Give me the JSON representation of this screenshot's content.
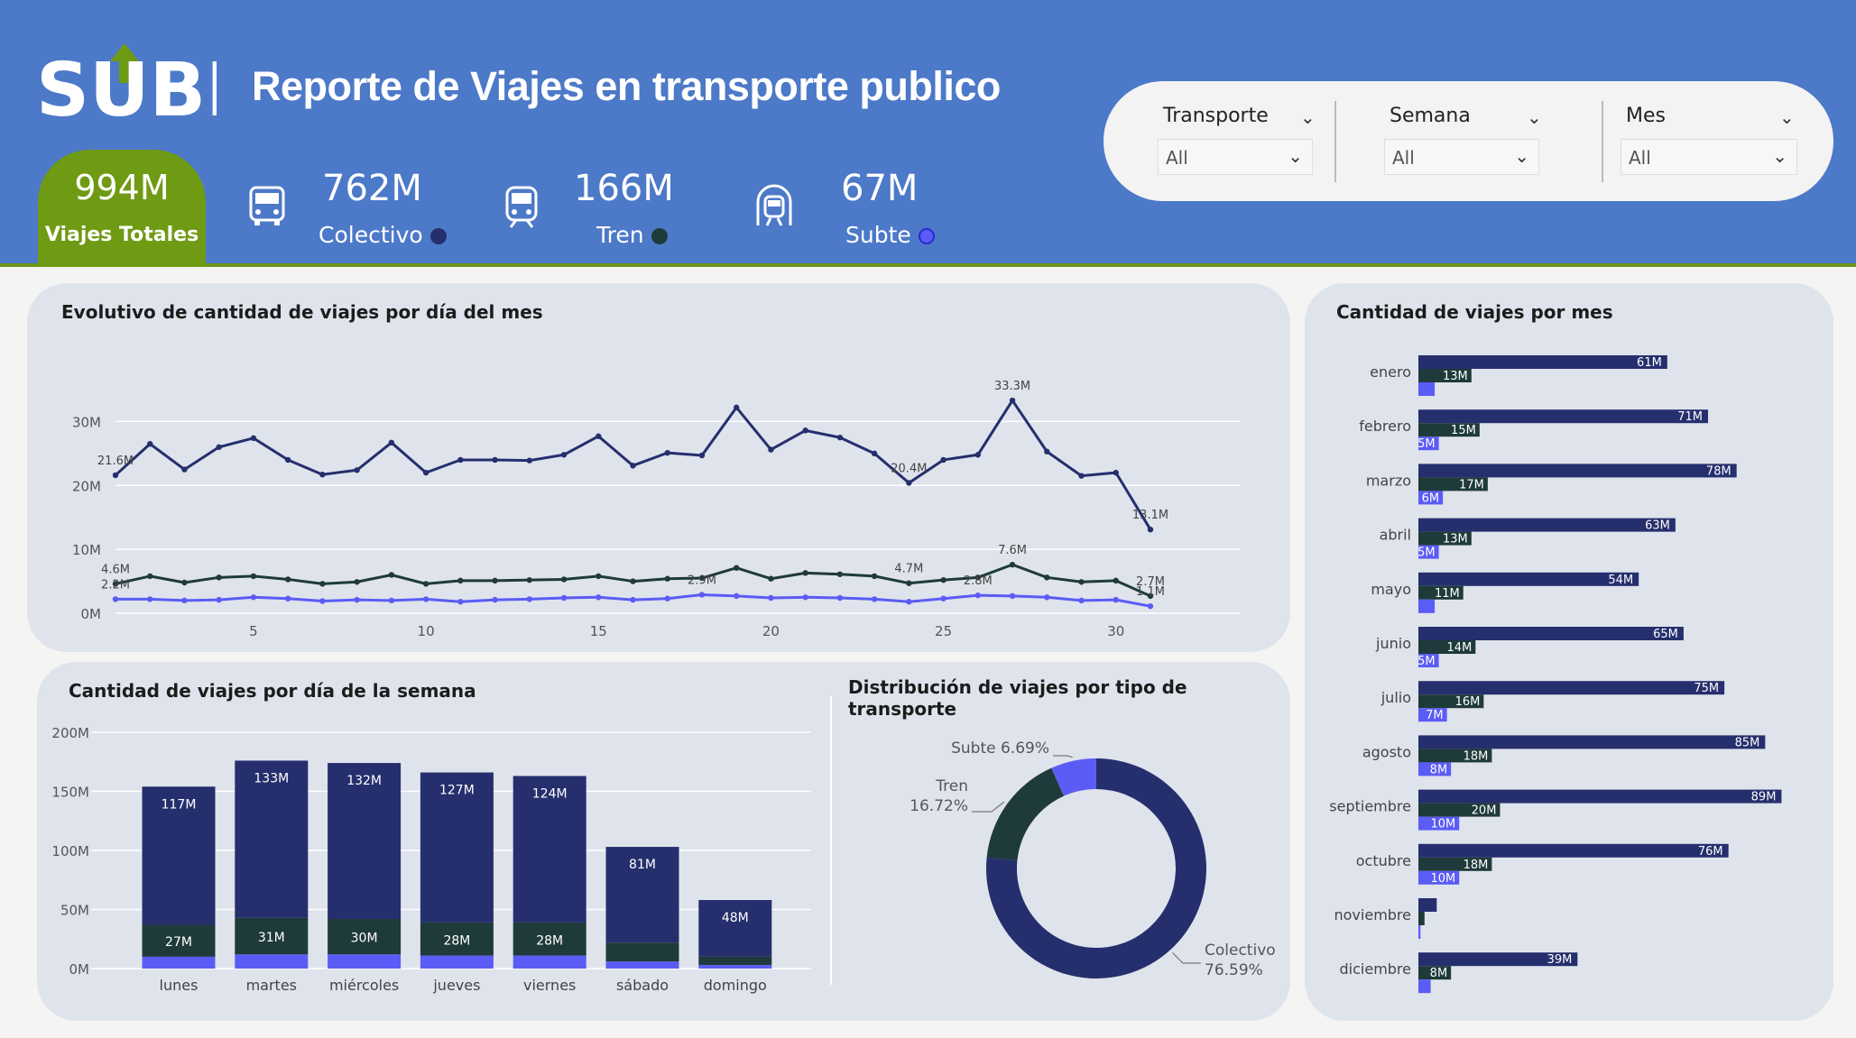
{
  "header": {
    "logo_text": "SUBE",
    "title": "Reporte de Viajes en transporte publico"
  },
  "kpis": {
    "total": {
      "value": "994M",
      "label": "Viajes Totales"
    },
    "colectivo": {
      "value": "762M",
      "label": "Colectivo",
      "icon": "bus-icon",
      "color": "#252f6d"
    },
    "tren": {
      "value": "166M",
      "label": "Tren",
      "icon": "train-icon",
      "color": "#1f3a3a"
    },
    "subte": {
      "value": "67M",
      "label": "Subte",
      "icon": "subway-icon",
      "color": "#5b5cf5"
    }
  },
  "filters": [
    {
      "label": "Transporte",
      "value": "All"
    },
    {
      "label": "Semana",
      "value": "All"
    },
    {
      "label": "Mes",
      "value": "All"
    }
  ],
  "colors": {
    "header_bg": "#4c79c8",
    "accent_green": "#6f9a14",
    "colectivo": "#252f6d",
    "tren": "#1f3a3a",
    "subte": "#5b5cf5",
    "card_bg": "#dfe3ec"
  },
  "chart_data": [
    {
      "type": "line",
      "title": "Evolutivo de cantidad de viajes por día del mes",
      "x": [
        1,
        2,
        3,
        4,
        5,
        6,
        7,
        8,
        9,
        10,
        11,
        12,
        13,
        14,
        15,
        16,
        17,
        18,
        19,
        20,
        21,
        22,
        23,
        24,
        25,
        26,
        27,
        28,
        29,
        30,
        31
      ],
      "x_ticks": [
        "5",
        "10",
        "15",
        "20",
        "25",
        "30"
      ],
      "y_ticks": [
        "0M",
        "10M",
        "20M",
        "30M"
      ],
      "ylim": [
        0,
        35
      ],
      "grid": true,
      "series": [
        {
          "key": "colectivo",
          "color": "#252f6d",
          "values": [
            21.6,
            26.5,
            22.5,
            26.0,
            27.4,
            24.0,
            21.7,
            22.4,
            26.7,
            22.0,
            24.0,
            24.0,
            23.9,
            24.8,
            27.7,
            23.1,
            25.1,
            24.7,
            32.2,
            25.6,
            28.6,
            27.5,
            25.0,
            20.4,
            24.0,
            24.8,
            33.3,
            25.3,
            21.5,
            22.0,
            13.1
          ]
        },
        {
          "key": "tren",
          "color": "#1f3a3a",
          "values": [
            4.6,
            5.8,
            4.8,
            5.6,
            5.8,
            5.3,
            4.6,
            4.9,
            6.0,
            4.6,
            5.1,
            5.1,
            5.2,
            5.3,
            5.8,
            5.0,
            5.4,
            5.5,
            7.1,
            5.4,
            6.3,
            6.1,
            5.8,
            4.7,
            5.2,
            5.6,
            7.6,
            5.6,
            4.9,
            5.1,
            2.7
          ]
        },
        {
          "key": "subte",
          "color": "#5b5cf5",
          "values": [
            2.2,
            2.2,
            2.0,
            2.1,
            2.5,
            2.3,
            1.9,
            2.1,
            2.0,
            2.2,
            1.8,
            2.1,
            2.2,
            2.4,
            2.5,
            2.1,
            2.3,
            2.9,
            2.7,
            2.4,
            2.5,
            2.4,
            2.2,
            1.8,
            2.3,
            2.8,
            2.7,
            2.5,
            2.0,
            2.1,
            1.1
          ]
        }
      ],
      "data_labels": [
        {
          "series": 0,
          "x": 1,
          "text": "21.6M"
        },
        {
          "series": 0,
          "x": 24,
          "text": "20.4M"
        },
        {
          "series": 0,
          "x": 27,
          "text": "33.3M"
        },
        {
          "series": 0,
          "x": 31,
          "text": "13.1M"
        },
        {
          "series": 1,
          "x": 1,
          "text": "4.6M"
        },
        {
          "series": 1,
          "x": 24,
          "text": "4.7M"
        },
        {
          "series": 1,
          "x": 27,
          "text": "7.6M"
        },
        {
          "series": 1,
          "x": 31,
          "text": "2.7M"
        },
        {
          "series": 2,
          "x": 1,
          "text": "2.2M"
        },
        {
          "series": 2,
          "x": 18,
          "text": "2.9M"
        },
        {
          "series": 2,
          "x": 26,
          "text": "2.8M"
        },
        {
          "series": 2,
          "x": 31,
          "text": "1.1M"
        }
      ]
    },
    {
      "type": "bar",
      "title": "Cantidad de viajes por día de la semana",
      "categories": [
        "lunes",
        "martes",
        "miércoles",
        "jueves",
        "viernes",
        "sábado",
        "domingo"
      ],
      "y_ticks": [
        "0M",
        "50M",
        "100M",
        "150M",
        "200M"
      ],
      "ylim": [
        0,
        200
      ],
      "stacked": true,
      "series": [
        {
          "key": "subte",
          "color": "#5b5cf5",
          "values": [
            10,
            12,
            12,
            11,
            11,
            6,
            3
          ]
        },
        {
          "key": "tren",
          "color": "#1f3a3a",
          "values": [
            27,
            31,
            30,
            28,
            28,
            16,
            7
          ]
        },
        {
          "key": "colectivo",
          "color": "#252f6d",
          "values": [
            117,
            133,
            132,
            127,
            124,
            81,
            48
          ]
        }
      ],
      "labels": {
        "colectivo": [
          "117M",
          "133M",
          "132M",
          "127M",
          "124M",
          "81M",
          "48M"
        ],
        "tren": [
          "27M",
          "31M",
          "30M",
          "28M",
          "28M",
          "",
          ""
        ]
      }
    },
    {
      "type": "pie",
      "title": "Distribución de viajes por tipo de transporte",
      "donut": true,
      "slices": [
        {
          "key": "colectivo",
          "line1": "Colectivo",
          "line2": "76.59%",
          "value": 76.59,
          "color": "#252f6d"
        },
        {
          "key": "tren",
          "line1": "Tren",
          "line2": "16.72%",
          "value": 16.72,
          "color": "#1f3a3a"
        },
        {
          "key": "subte",
          "line1": "Subte 6.69%",
          "line2": "",
          "value": 6.69,
          "color": "#5b5cf5"
        }
      ]
    },
    {
      "type": "bar",
      "orientation": "horizontal",
      "title": "Cantidad de viajes por mes",
      "categories": [
        "enero",
        "febrero",
        "marzo",
        "abril",
        "mayo",
        "junio",
        "julio",
        "agosto",
        "septiembre",
        "octubre",
        "noviembre",
        "diciembre"
      ],
      "xlim": [
        0,
        92
      ],
      "series": [
        {
          "key": "colectivo",
          "color": "#252f6d",
          "values": [
            61,
            71,
            78,
            63,
            54,
            65,
            75,
            85,
            89,
            76,
            4.5,
            39
          ],
          "labels": [
            "61M",
            "71M",
            "78M",
            "63M",
            "54M",
            "65M",
            "75M",
            "85M",
            "89M",
            "76M",
            "",
            "39M"
          ]
        },
        {
          "key": "tren",
          "color": "#1f3a3a",
          "values": [
            13,
            15,
            17,
            13,
            11,
            14,
            16,
            18,
            20,
            18,
            1.5,
            8
          ],
          "labels": [
            "13M",
            "15M",
            "17M",
            "13M",
            "11M",
            "14M",
            "16M",
            "18M",
            "20M",
            "18M",
            "",
            "8M"
          ]
        },
        {
          "key": "subte",
          "color": "#5b5cf5",
          "values": [
            4,
            5,
            6,
            5,
            4,
            5,
            7,
            8,
            10,
            10,
            0.5,
            3
          ],
          "labels": [
            "",
            "5M",
            "6M",
            "5M",
            "",
            "5M",
            "7M",
            "8M",
            "10M",
            "10M",
            "",
            ""
          ]
        }
      ]
    }
  ]
}
